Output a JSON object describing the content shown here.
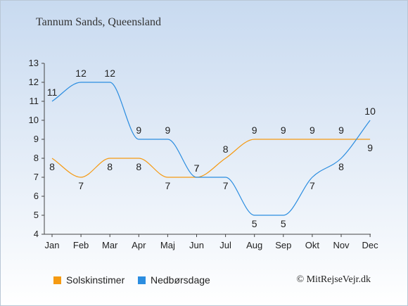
{
  "title": "Tannum Sands, Queensland",
  "credit": "© MitRejseVejr.dk",
  "chart_data": {
    "type": "line",
    "categories": [
      "Jan",
      "Feb",
      "Mar",
      "Apr",
      "Maj",
      "Jun",
      "Jul",
      "Aug",
      "Sep",
      "Okt",
      "Nov",
      "Dec"
    ],
    "ylim": [
      4,
      13
    ],
    "yticks": [
      4,
      5,
      6,
      7,
      8,
      9,
      10,
      11,
      12,
      13
    ],
    "grid": false,
    "legend_position": "bottom",
    "series": [
      {
        "name": "Solskinstimer",
        "color": "#f59a12",
        "values": [
          8,
          7,
          8,
          8,
          7,
          7,
          8,
          9,
          9,
          9,
          9,
          9
        ]
      },
      {
        "name": "Nedbørsdage",
        "color": "#2b8de0",
        "values": [
          11,
          12,
          12,
          9,
          9,
          7,
          7,
          5,
          5,
          7,
          8,
          10
        ]
      }
    ]
  }
}
